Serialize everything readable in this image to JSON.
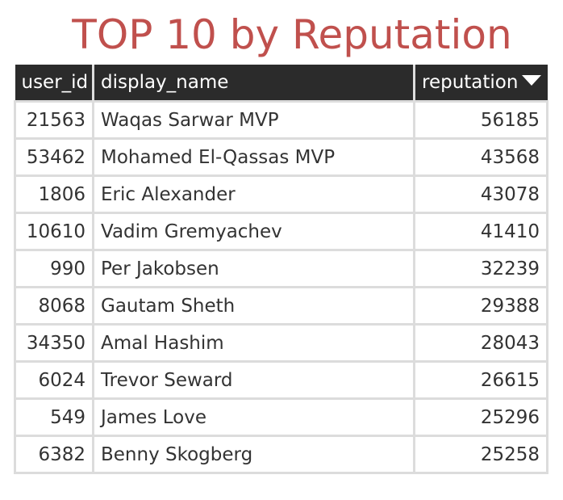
{
  "title": "TOP 10 by Reputation",
  "columns": {
    "user_id": "user_id",
    "display_name": "display_name",
    "reputation": "reputation"
  },
  "sort": {
    "column": "reputation",
    "direction": "descending",
    "icon": "triangle-down-icon"
  },
  "rows": [
    {
      "user_id": "21563",
      "display_name": "Waqas Sarwar MVP",
      "reputation": "56185"
    },
    {
      "user_id": "53462",
      "display_name": "Mohamed El-Qassas MVP",
      "reputation": "43568"
    },
    {
      "user_id": "1806",
      "display_name": "Eric Alexander",
      "reputation": "43078"
    },
    {
      "user_id": "10610",
      "display_name": "Vadim Gremyachev",
      "reputation": "41410"
    },
    {
      "user_id": "990",
      "display_name": "Per Jakobsen",
      "reputation": "32239"
    },
    {
      "user_id": "8068",
      "display_name": "Gautam Sheth",
      "reputation": "29388"
    },
    {
      "user_id": "34350",
      "display_name": "Amal Hashim",
      "reputation": "28043"
    },
    {
      "user_id": "6024",
      "display_name": "Trevor Seward",
      "reputation": "26615"
    },
    {
      "user_id": "549",
      "display_name": "James Love",
      "reputation": "25296"
    },
    {
      "user_id": "6382",
      "display_name": "Benny Skogberg",
      "reputation": "25258"
    }
  ],
  "colors": {
    "title": "#c0504d",
    "header_bg": "#2b2b2b",
    "header_text": "#ffffff",
    "grid_line": "#dcdcdc"
  }
}
